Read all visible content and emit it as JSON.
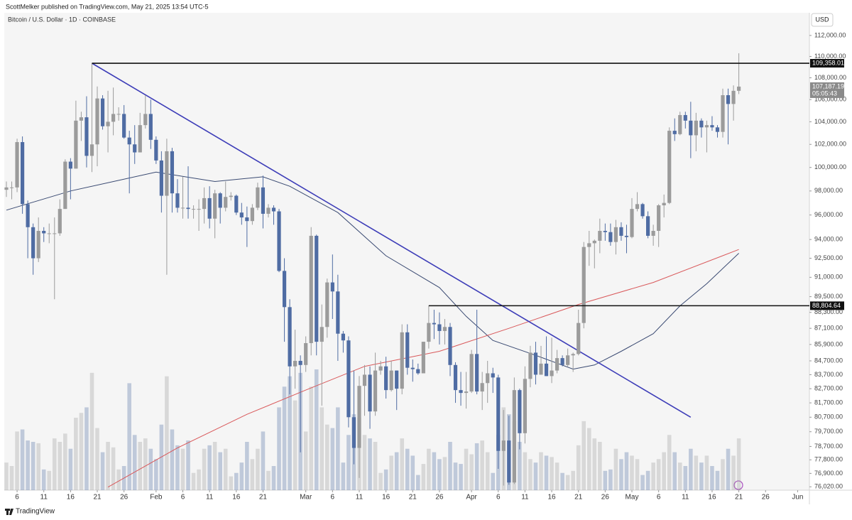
{
  "chart_data": {
    "type": "candlestick",
    "publisher": "ScottMelker published on TradingView.com, May 21, 2025 13:54 UTC-5",
    "title": "Bitcoin / U.S. Dollar · 1D · COINBASE",
    "currency": "USD",
    "brand": "TradingView",
    "log_scale": true,
    "grid": false,
    "up_color": "#9b9b9b",
    "down_color": "#4f6ca3",
    "categories": [
      "Jan 4",
      "Jan 5",
      "Jan 6",
      "Jan 7",
      "Jan 8",
      "Jan 9",
      "Jan 10",
      "Jan 11",
      "Jan 12",
      "Jan 13",
      "Jan 14",
      "Jan 15",
      "Jan 16",
      "Jan 17",
      "Jan 18",
      "Jan 19",
      "Jan 20",
      "Jan 21",
      "Jan 22",
      "Jan 23",
      "Jan 24",
      "Jan 25",
      "Jan 26",
      "Jan 27",
      "Jan 28",
      "Jan 29",
      "Jan 30",
      "Jan 31",
      "Feb 1",
      "Feb 2",
      "Feb 3",
      "Feb 4",
      "Feb 5",
      "Feb 6",
      "Feb 7",
      "Feb 8",
      "Feb 9",
      "Feb 10",
      "Feb 11",
      "Feb 12",
      "Feb 13",
      "Feb 14",
      "Feb 15",
      "Feb 16",
      "Feb 17",
      "Feb 18",
      "Feb 19",
      "Feb 20",
      "Feb 21",
      "Feb 22",
      "Feb 23",
      "Feb 24",
      "Feb 25",
      "Feb 26",
      "Feb 27",
      "Feb 28",
      "Mar 1",
      "Mar 2",
      "Mar 3",
      "Mar 4",
      "Mar 5",
      "Mar 6",
      "Mar 7",
      "Mar 8",
      "Mar 9",
      "Mar 10",
      "Mar 11",
      "Mar 12",
      "Mar 13",
      "Mar 14",
      "Mar 15",
      "Mar 16",
      "Mar 17",
      "Mar 18",
      "Mar 19",
      "Mar 20",
      "Mar 21",
      "Mar 22",
      "Mar 23",
      "Mar 24",
      "Mar 25",
      "Mar 26",
      "Mar 27",
      "Mar 28",
      "Mar 29",
      "Mar 30",
      "Mar 31",
      "Apr 1",
      "Apr 2",
      "Apr 3",
      "Apr 4",
      "Apr 5",
      "Apr 6",
      "Apr 7",
      "Apr 8",
      "Apr 9",
      "Apr 10",
      "Apr 11",
      "Apr 12",
      "Apr 13",
      "Apr 14",
      "Apr 15",
      "Apr 16",
      "Apr 17",
      "Apr 18",
      "Apr 19",
      "Apr 20",
      "Apr 21",
      "Apr 22",
      "Apr 23",
      "Apr 24",
      "Apr 25",
      "Apr 26",
      "Apr 27",
      "Apr 28",
      "Apr 29",
      "Apr 30",
      "May 1",
      "May 2",
      "May 3",
      "May 4",
      "May 5",
      "May 6",
      "May 7",
      "May 8",
      "May 9",
      "May 10",
      "May 11",
      "May 12",
      "May 13",
      "May 14",
      "May 15",
      "May 16",
      "May 17",
      "May 18",
      "May 19",
      "May 20",
      "May 21",
      "May 22",
      "May 23",
      "May 24",
      "May 25",
      "May 26",
      "May 27",
      "May 28",
      "May 29",
      "May 30",
      "May 31",
      "Jun 1"
    ],
    "open": [
      98100,
      98300,
      98300,
      102200,
      96900,
      95000,
      92500,
      94700,
      94500,
      94500,
      94500,
      96500,
      100500,
      99900,
      104100,
      104400,
      101000,
      102000,
      106100,
      103600,
      104000,
      104700,
      104700,
      102600,
      102000,
      101300,
      103700,
      104700,
      102400,
      100600,
      97600,
      101400,
      97800,
      96600,
      96600,
      96500,
      96500,
      96500,
      97400,
      95700,
      97800,
      96600,
      97500,
      97600,
      96200,
      95800,
      95500,
      96600,
      98300,
      96100,
      96600,
      96300,
      91500,
      88700,
      84300,
      84700,
      84400,
      86000,
      94300,
      86100,
      87200,
      90600,
      89900,
      86700,
      86200,
      80700,
      78600,
      82900,
      83700,
      81100,
      84000,
      84300,
      82600,
      84000,
      82700,
      86800,
      84200,
      84100,
      83800,
      86100,
      87500,
      87400,
      86900,
      87200,
      84400,
      82600,
      82400,
      82500,
      85200,
      82500,
      83100,
      83800,
      83500,
      78400,
      79100,
      76300,
      82600,
      79600,
      83400,
      85300,
      83700,
      84500,
      83600,
      84000,
      84900,
      84400,
      85100,
      85200,
      87500,
      93400,
      93700,
      93900,
      94700,
      94600,
      93800,
      95000,
      94300,
      94200,
      96500,
      96900,
      95900,
      94300,
      94700,
      96800,
      97000,
      103200,
      102900,
      104600,
      104100,
      102800,
      104100,
      103500,
      103700,
      103500,
      103100,
      106400,
      105600,
      106800,
      null,
      null,
      null,
      null,
      null,
      null,
      null,
      null,
      null,
      null,
      null
    ],
    "high": [
      98800,
      98800,
      102500,
      102700,
      97200,
      95300,
      95800,
      95000,
      95300,
      95800,
      97300,
      100700,
      100800,
      105900,
      104900,
      106300,
      109358.01,
      107200,
      106400,
      106800,
      107100,
      105300,
      105500,
      103200,
      103700,
      104800,
      106400,
      106000,
      102700,
      101400,
      102500,
      101700,
      99000,
      99200,
      100100,
      96800,
      97300,
      98300,
      98400,
      98100,
      97900,
      98800,
      97900,
      97700,
      97000,
      96700,
      96900,
      98700,
      99300,
      96900,
      96800,
      96500,
      92500,
      89300,
      87000,
      85100,
      86500,
      95000,
      94400,
      88900,
      90900,
      92800,
      91200,
      86900,
      86500,
      84000,
      83600,
      84400,
      84300,
      85300,
      84700,
      85000,
      84700,
      84000,
      87400,
      87400,
      84800,
      84500,
      86100,
      88804.64,
      88500,
      88300,
      87800,
      87500,
      84600,
      83900,
      83900,
      85500,
      88500,
      83900,
      84700,
      84200,
      83700,
      81200,
      80800,
      83500,
      82700,
      84300,
      85800,
      86100,
      85800,
      86500,
      86400,
      85500,
      85100,
      85600,
      85300,
      88500,
      93800,
      94700,
      94000,
      95700,
      95300,
      95300,
      95600,
      95400,
      95200,
      97400,
      97900,
      97000,
      96300,
      95200,
      96900,
      97700,
      103500,
      104300,
      104900,
      104900,
      105800,
      104800,
      104300,
      104100,
      104500,
      103700,
      107000,
      107000,
      107300,
      110300,
      null,
      null,
      null,
      null,
      null,
      null,
      null,
      null,
      null,
      null,
      null
    ],
    "low": [
      97500,
      97300,
      97900,
      96100,
      92500,
      91200,
      92200,
      93800,
      93700,
      89300,
      94300,
      96500,
      97300,
      99900,
      102300,
      100000,
      99600,
      100100,
      103300,
      101300,
      102800,
      104100,
      102500,
      97800,
      100300,
      101300,
      103400,
      101600,
      100300,
      96200,
      91200,
      96200,
      96200,
      95700,
      95700,
      95700,
      94700,
      95300,
      94900,
      94100,
      95300,
      96300,
      97200,
      96000,
      95200,
      93400,
      95200,
      96400,
      94900,
      95800,
      95200,
      91400,
      86100,
      82300,
      82700,
      78300,
      83900,
      85100,
      85100,
      81500,
      86400,
      87800,
      84700,
      85300,
      80000,
      77500,
      76600,
      80800,
      79900,
      80800,
      83700,
      82000,
      82500,
      81200,
      82300,
      83700,
      83200,
      83700,
      83800,
      85600,
      86300,
      85900,
      85900,
      83600,
      81700,
      81500,
      81300,
      82400,
      82300,
      81200,
      81700,
      82400,
      77200,
      76100,
      76150,
      76200,
      78500,
      78900,
      82800,
      83000,
      83700,
      83600,
      83100,
      83800,
      84300,
      84300,
      83900,
      85100,
      87100,
      91900,
      91700,
      92900,
      93900,
      93500,
      92800,
      93900,
      92900,
      94100,
      96300,
      95700,
      94100,
      93500,
      93400,
      95800,
      96900,
      102300,
      102800,
      103400,
      100800,
      101400,
      102600,
      101300,
      103200,
      102600,
      102600,
      102000,
      104100,
      106500,
      null,
      null,
      null,
      null,
      null,
      null,
      null,
      null,
      null,
      null,
      null
    ],
    "close": [
      98300,
      98300,
      102200,
      96900,
      95000,
      92500,
      94700,
      94500,
      94500,
      94500,
      96500,
      100500,
      99900,
      104100,
      104400,
      101000,
      102000,
      106100,
      103600,
      104000,
      104700,
      104700,
      102600,
      102000,
      101300,
      103700,
      104700,
      102400,
      100600,
      97600,
      101400,
      97800,
      96600,
      96600,
      96500,
      96500,
      96500,
      97400,
      95700,
      97800,
      96600,
      97500,
      97600,
      96200,
      95800,
      95500,
      96600,
      98300,
      96100,
      96600,
      96300,
      91500,
      88700,
      84300,
      84700,
      84400,
      86000,
      94300,
      86100,
      87200,
      90600,
      89900,
      86700,
      86200,
      80700,
      78600,
      82900,
      83700,
      81100,
      84000,
      84300,
      82600,
      84000,
      82700,
      86800,
      84200,
      84100,
      83800,
      86100,
      87500,
      87400,
      86900,
      87200,
      84400,
      82600,
      82400,
      82500,
      85200,
      82500,
      83100,
      83800,
      83500,
      78400,
      79100,
      76300,
      82600,
      79600,
      83400,
      85300,
      83700,
      84500,
      83600,
      84000,
      84900,
      84400,
      85100,
      85200,
      87500,
      93400,
      93700,
      93900,
      94700,
      94600,
      93800,
      95000,
      94300,
      94200,
      96500,
      96900,
      95900,
      94300,
      94700,
      96800,
      97000,
      103200,
      102900,
      104600,
      104100,
      102800,
      104100,
      103500,
      103700,
      103500,
      103100,
      106400,
      105600,
      106800,
      107187.19,
      null,
      null,
      null,
      null,
      null,
      null,
      null,
      null,
      null,
      null,
      null
    ],
    "volume": [
      40,
      35,
      85,
      88,
      72,
      70,
      68,
      30,
      28,
      75,
      70,
      82,
      60,
      105,
      112,
      120,
      170,
      90,
      55,
      70,
      62,
      30,
      35,
      155,
      80,
      70,
      75,
      60,
      45,
      95,
      165,
      88,
      65,
      60,
      72,
      25,
      30,
      60,
      65,
      70,
      55,
      60,
      20,
      25,
      40,
      70,
      45,
      60,
      85,
      28,
      35,
      120,
      150,
      165,
      130,
      170,
      85,
      150,
      175,
      120,
      95,
      90,
      120,
      40,
      80,
      110,
      105,
      80,
      75,
      70,
      25,
      30,
      50,
      55,
      75,
      60,
      50,
      22,
      38,
      60,
      55,
      45,
      48,
      70,
      40,
      38,
      60,
      52,
      68,
      72,
      55,
      25,
      80,
      120,
      110,
      100,
      70,
      55,
      45,
      40,
      55,
      50,
      48,
      40,
      25,
      22,
      28,
      65,
      100,
      90,
      75,
      70,
      28,
      30,
      60,
      45,
      55,
      50,
      45,
      22,
      28,
      40,
      45,
      55,
      80,
      55,
      40,
      35,
      60,
      50,
      40,
      50,
      35,
      28,
      45,
      60,
      50,
      75,
      null,
      null,
      null,
      null,
      null,
      null,
      null,
      null,
      null,
      null,
      null
    ],
    "ylim": [
      75800,
      114200
    ],
    "yticks": [
      {
        "value": 112000,
        "label": "112,000.00"
      },
      {
        "value": 110000,
        "label": "110,000.00"
      },
      {
        "value": 108000,
        "label": "108,000.00"
      },
      {
        "value": 106000,
        "label": "106,000.00"
      },
      {
        "value": 104000,
        "label": "104,000.00"
      },
      {
        "value": 102000,
        "label": "102,000.00"
      },
      {
        "value": 100000,
        "label": "100,000.00"
      },
      {
        "value": 98000,
        "label": "98,000.00"
      },
      {
        "value": 96000,
        "label": "96,000.00"
      },
      {
        "value": 94000,
        "label": "94,000.00"
      },
      {
        "value": 92500,
        "label": "92,500.00"
      },
      {
        "value": 91000,
        "label": "91,000.00"
      },
      {
        "value": 89500,
        "label": "89,500.00"
      },
      {
        "value": 88300,
        "label": "88,300.00"
      },
      {
        "value": 87100,
        "label": "87,100.00"
      },
      {
        "value": 85900,
        "label": "85,900.00"
      },
      {
        "value": 84700,
        "label": "84,700.00"
      },
      {
        "value": 83700,
        "label": "83,700.00"
      },
      {
        "value": 82700,
        "label": "82,700.00"
      },
      {
        "value": 81700,
        "label": "81,700.00"
      },
      {
        "value": 80700,
        "label": "80,700.00"
      },
      {
        "value": 79700,
        "label": "79,700.00"
      },
      {
        "value": 78700,
        "label": "78,700.00"
      },
      {
        "value": 77800,
        "label": "77,800.00"
      },
      {
        "value": 76900,
        "label": "76,900.00"
      },
      {
        "value": 76020,
        "label": "76,020.00"
      }
    ],
    "xticks": [
      {
        "value": "Jan 6",
        "label": "6"
      },
      {
        "value": "Jan 11",
        "label": "11"
      },
      {
        "value": "Jan 16",
        "label": "16"
      },
      {
        "value": "Jan 21",
        "label": "21"
      },
      {
        "value": "Jan 26",
        "label": "26"
      },
      {
        "value": "Feb 1",
        "label": "Feb"
      },
      {
        "value": "Feb 6",
        "label": "6"
      },
      {
        "value": "Feb 11",
        "label": "11"
      },
      {
        "value": "Feb 16",
        "label": "16"
      },
      {
        "value": "Feb 21",
        "label": "21"
      },
      {
        "value": "Mar 1",
        "label": "Mar"
      },
      {
        "value": "Mar 6",
        "label": "6"
      },
      {
        "value": "Mar 11",
        "label": "11"
      },
      {
        "value": "Mar 16",
        "label": "16"
      },
      {
        "value": "Mar 21",
        "label": "21"
      },
      {
        "value": "Mar 26",
        "label": "26"
      },
      {
        "value": "Apr 1",
        "label": "Apr"
      },
      {
        "value": "Apr 6",
        "label": "6"
      },
      {
        "value": "Apr 11",
        "label": "11"
      },
      {
        "value": "Apr 16",
        "label": "16"
      },
      {
        "value": "Apr 21",
        "label": "21"
      },
      {
        "value": "Apr 26",
        "label": "26"
      },
      {
        "value": "May 1",
        "label": "May"
      },
      {
        "value": "May 6",
        "label": "6"
      },
      {
        "value": "May 11",
        "label": "11"
      },
      {
        "value": "May 16",
        "label": "16"
      },
      {
        "value": "May 21",
        "label": "21"
      },
      {
        "value": "May 26",
        "label": "26"
      },
      {
        "value": "Jun 1",
        "label": "Jun"
      }
    ],
    "overlays": [
      {
        "color": "#3a4a72",
        "x": [
          "Jan 4",
          "Jan 16",
          "Feb 1",
          "Feb 12",
          "Feb 21",
          "Feb 26",
          "Mar 7",
          "Mar 16",
          "Mar 26",
          "Mar 31",
          "Apr 5",
          "Apr 13",
          "Apr 20",
          "Apr 24",
          "Apr 29",
          "May 5",
          "May 10",
          "May 15",
          "May 21"
        ],
        "values": [
          96400,
          98000,
          99600,
          98800,
          99200,
          98400,
          96200,
          92700,
          90200,
          88000,
          86200,
          85100,
          84100,
          84400,
          85400,
          86700,
          88800,
          90500,
          92900
        ]
      },
      {
        "color": "#d9585a",
        "x": [
          "Jan 23",
          "Feb 5",
          "Feb 18",
          "Mar 1",
          "Mar 12",
          "Mar 26",
          "Apr 8",
          "Apr 21",
          "May 5",
          "May 21"
        ],
        "values": [
          76000,
          78600,
          80900,
          82600,
          84300,
          85400,
          87100,
          88900,
          90600,
          93200
        ]
      },
      {
        "color": "#3d3db8",
        "x": [
          "Jan 20",
          "May 12"
        ],
        "values": [
          109358.01,
          80700
        ]
      }
    ],
    "levels": [
      {
        "value": 109358.01,
        "label": "109,358.01",
        "from": "Jan 20"
      },
      {
        "value": 88804.64,
        "label": "88,804.64",
        "from": "Mar 24"
      }
    ],
    "current": {
      "value": 107187.19,
      "label": "107,187.19",
      "countdown": "05:05:43"
    }
  }
}
